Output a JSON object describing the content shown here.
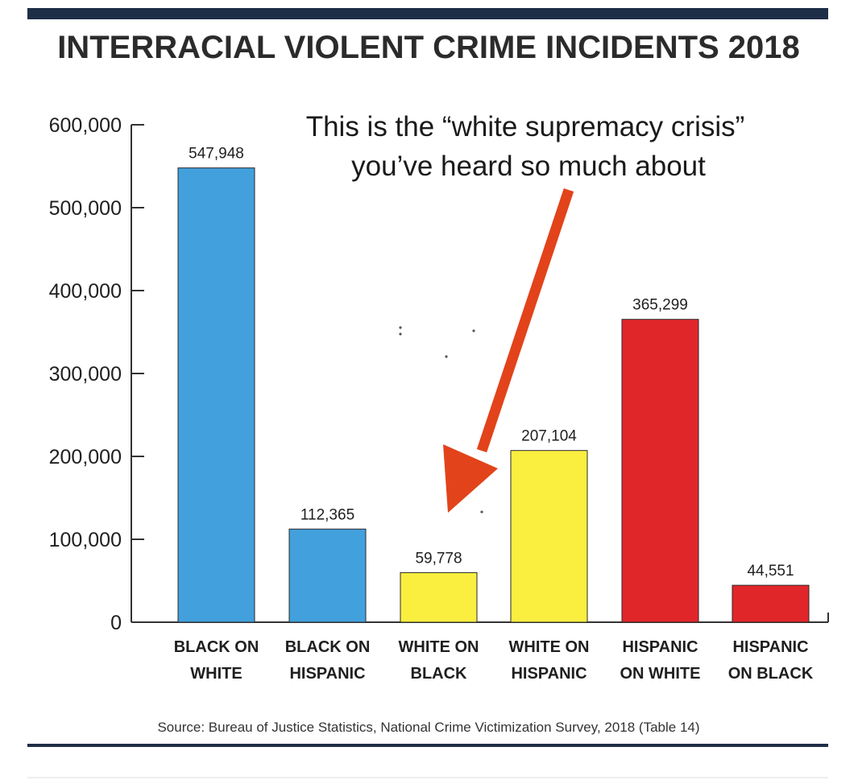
{
  "colors": {
    "rule": "#1f2e47",
    "axis": "#333333",
    "blue": "#42a0dc",
    "yellow": "#faee3f",
    "red": "#e1262a",
    "arrow": "#e2431a",
    "text": "#1f1f1f"
  },
  "annotation": {
    "line1": "This is the “white supremacy crisis”",
    "line2": "you’ve heard so much about"
  },
  "source": "Source: Bureau of Justice Statistics, National Crime Victimization Survey, 2018 (Table 14)",
  "chart_data": {
    "type": "bar",
    "title": "INTERRACIAL VIOLENT CRIME INCIDENTS 2018",
    "xlabel": "",
    "ylabel": "",
    "ylim": [
      0,
      600000
    ],
    "yticks": [
      "0",
      "100,000",
      "200,000",
      "300,000",
      "400,000",
      "500,000",
      "600,000"
    ],
    "grid": false,
    "categories": [
      [
        "BLACK ON",
        "WHITE"
      ],
      [
        "BLACK ON",
        "HISPANIC"
      ],
      [
        "WHITE ON",
        "BLACK"
      ],
      [
        "WHITE ON",
        "HISPANIC"
      ],
      [
        "HISPANIC",
        "ON WHITE"
      ],
      [
        "HISPANIC",
        "ON BLACK"
      ]
    ],
    "values": [
      547948,
      112365,
      59778,
      207104,
      365299,
      44551
    ],
    "data_labels": [
      "547,948",
      "112,365",
      "59,778",
      "207,104",
      "365,299",
      "44,551"
    ],
    "bar_colors": [
      "blue",
      "blue",
      "yellow",
      "yellow",
      "red",
      "red"
    ]
  }
}
